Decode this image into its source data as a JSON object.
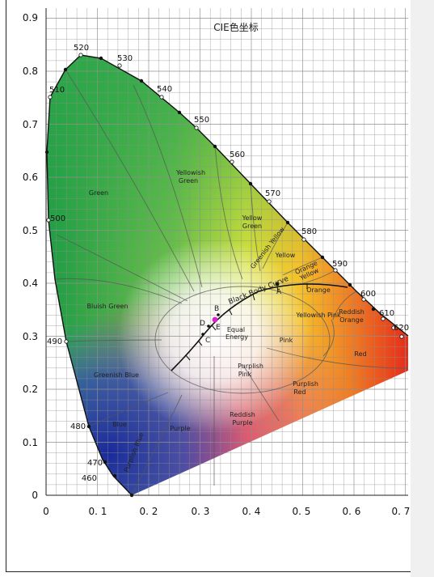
{
  "title": "CIE色坐标",
  "y_ticks": [
    "0.9",
    "0.8",
    "0.7",
    "0.6",
    "0.5",
    "0.4",
    "0.3",
    "0.2",
    "0.1",
    "0"
  ],
  "x_ticks": [
    "0",
    "0. 1",
    "0. 2",
    "0. 3",
    "0. 4",
    "0. 5",
    "0. 6",
    "0. 7"
  ],
  "wavelengths": [
    "460",
    "470",
    "480",
    "490",
    "500",
    "510",
    "520",
    "530",
    "540",
    "550",
    "560",
    "570",
    "580",
    "590",
    "600",
    "610",
    "620"
  ],
  "regions": [
    "Green",
    "Yellowish Green",
    "Yellow Green",
    "Greenish Yellow",
    "Yellow",
    "Orange Yellow",
    "Orange",
    "Reddish Orange",
    "Red",
    "Yellowish Pink",
    "Pink",
    "Bluish Green",
    "Greenish Blue",
    "Blue",
    "Purplish Blue",
    "Purple",
    "Reddish Purple",
    "Purplish Pink",
    "Purplish Red"
  ],
  "curve_label": "Black Body Curve",
  "equal_energy_label": "Equal Energy",
  "points": [
    "A",
    "B",
    "C",
    "D",
    "E"
  ],
  "colors": {
    "grid": "#8f8f8f",
    "boundary": "#000000",
    "equal_energy_marker": "#e020d0"
  }
}
